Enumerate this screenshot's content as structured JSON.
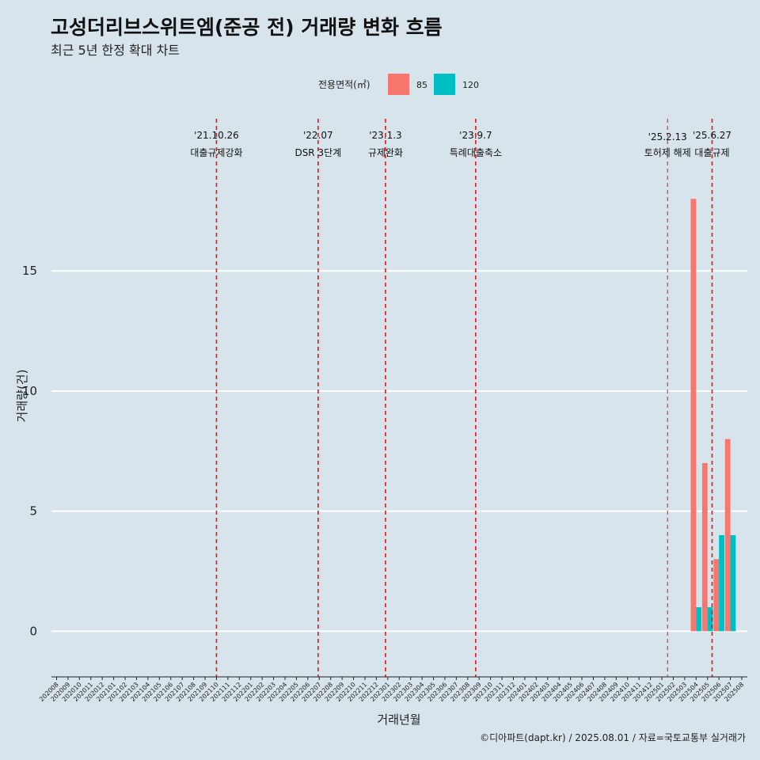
{
  "chart_data": {
    "type": "bar",
    "title": "고성더리브스위트엠(준공 전) 거래량 변화 흐름",
    "subtitle": "최근 5년 한정 확대 차트",
    "xlabel": "거래년월",
    "ylabel": "거래량(건)",
    "legend_title": "전용면적(㎡)",
    "legend_position": "top",
    "caption": "©디아파트(dapt.kr) / 2025.08.01 / 자료=국토교통부 실거래가",
    "ylim": [
      -1.9,
      21.5
    ],
    "yticks": [
      0,
      5,
      10,
      15
    ],
    "grid": true,
    "categories": [
      "202008",
      "202009",
      "202010",
      "202011",
      "202012",
      "202101",
      "202102",
      "202103",
      "202104",
      "202105",
      "202106",
      "202107",
      "202108",
      "202109",
      "202110",
      "202111",
      "202112",
      "202201",
      "202202",
      "202203",
      "202204",
      "202205",
      "202206",
      "202207",
      "202208",
      "202209",
      "202210",
      "202211",
      "202212",
      "202301",
      "202302",
      "202303",
      "202304",
      "202305",
      "202306",
      "202307",
      "202308",
      "202309",
      "202310",
      "202311",
      "202312",
      "202401",
      "202402",
      "202403",
      "202404",
      "202405",
      "202406",
      "202407",
      "202408",
      "202409",
      "202410",
      "202411",
      "202412",
      "202501",
      "202502",
      "202503",
      "202504",
      "202505",
      "202506",
      "202507",
      "202508"
    ],
    "series": [
      {
        "name": "85",
        "color": "#f8766d",
        "values": {
          "202504": 18,
          "202505": 7,
          "202506": 3,
          "202507": 8
        }
      },
      {
        "name": "120",
        "color": "#00bfc4",
        "values": {
          "202504": 1,
          "202505": 1,
          "202506": 4,
          "202507": 4
        }
      }
    ],
    "annotations": [
      {
        "x": 14.0,
        "date": "'21.10.26",
        "label": "대출규제강화",
        "major": true
      },
      {
        "x": 22.9,
        "date": "'22.07",
        "label": "DSR 3단계",
        "major": true
      },
      {
        "x": 28.8,
        "date": "'23.1.3",
        "label": "규제완화",
        "major": true
      },
      {
        "x": 36.7,
        "date": "'23.9.7",
        "label": "특례대출축소",
        "major": true
      },
      {
        "x": 53.5,
        "date": "'25.2.13",
        "label": "토허제 해제",
        "major": false
      },
      {
        "x": 57.4,
        "date": "'25.6.27",
        "label": "대출규제",
        "major": true
      }
    ]
  }
}
